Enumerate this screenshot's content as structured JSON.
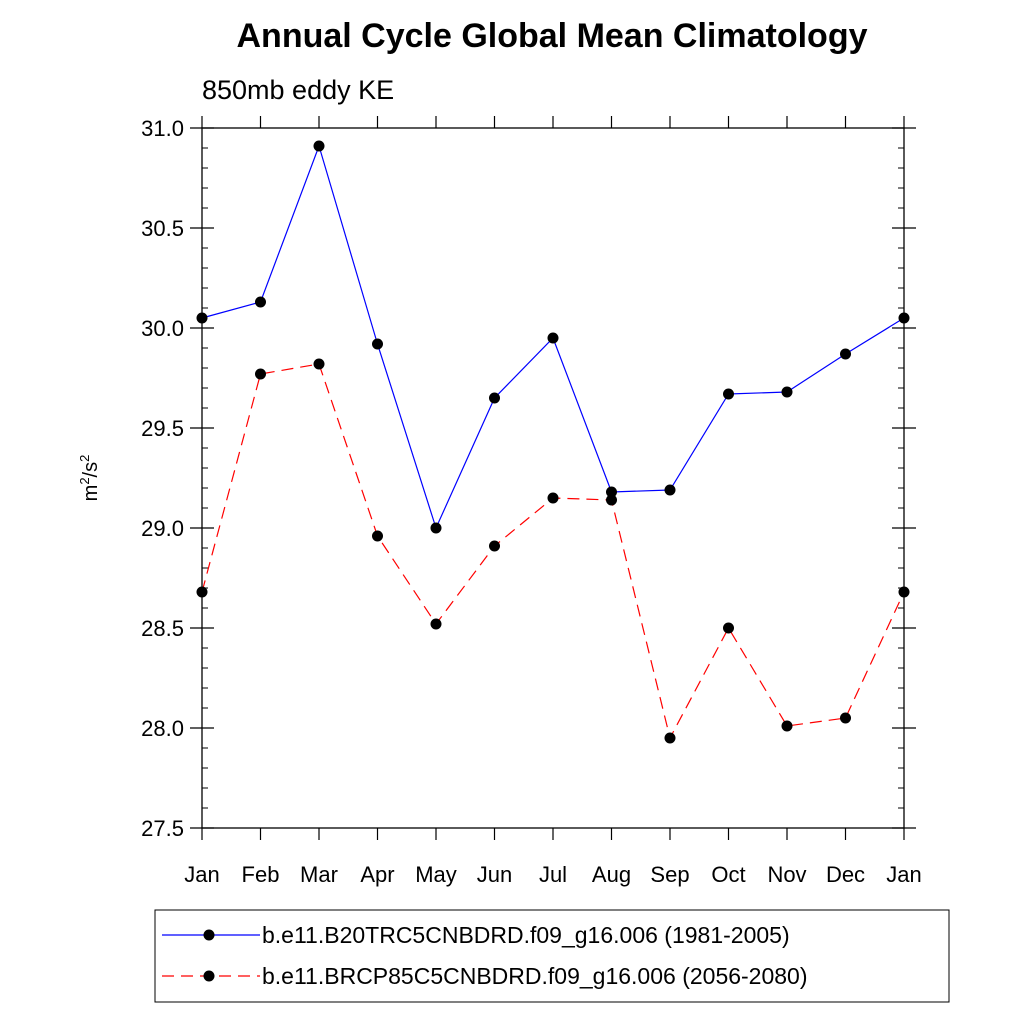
{
  "chart_data": {
    "type": "line",
    "title": "Annual Cycle Global Mean Climatology",
    "subtitle": "850mb eddy KE",
    "xlabel": "",
    "ylabel": "m²/s²",
    "ylabel_base1": "m",
    "ylabel_sup1": "2",
    "ylabel_mid": "/s",
    "ylabel_sup2": "2",
    "categories": [
      "Jan",
      "Feb",
      "Mar",
      "Apr",
      "May",
      "Jun",
      "Jul",
      "Aug",
      "Sep",
      "Oct",
      "Nov",
      "Dec",
      "Jan"
    ],
    "ylim": [
      27.5,
      31.0
    ],
    "yticks": [
      "27.5",
      "28.0",
      "28.5",
      "29.0",
      "29.5",
      "30.0",
      "30.5",
      "31.0"
    ],
    "grid": false,
    "legend_position": "bottom",
    "series": [
      {
        "name": "b.e11.B20TRC5CNBDRD.f09_g16.006 (1981-2005)",
        "color": "#0000ff",
        "line_style": "solid",
        "marker": "circle",
        "values": [
          30.05,
          30.13,
          30.91,
          29.92,
          29.0,
          29.65,
          29.95,
          29.18,
          29.19,
          29.67,
          29.68,
          29.87,
          30.05
        ]
      },
      {
        "name": "b.e11.BRCP85C5CNBDRD.f09_g16.006 (2056-2080)",
        "color": "#ff0000",
        "line_style": "dashed",
        "marker": "circle",
        "values": [
          28.68,
          29.77,
          29.82,
          28.96,
          28.52,
          28.91,
          29.15,
          29.14,
          27.95,
          28.5,
          28.01,
          28.05,
          28.68
        ]
      }
    ]
  }
}
